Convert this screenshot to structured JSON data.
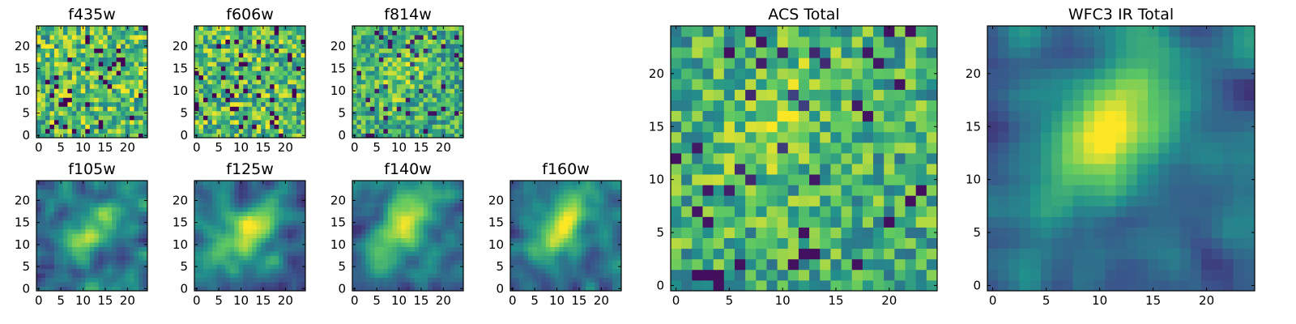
{
  "figure": {
    "description_colormap": "viridis",
    "colormap_stops": [
      "#440154",
      "#3b528b",
      "#21918c",
      "#5ec962",
      "#fde725"
    ]
  },
  "chart_data": [
    {
      "id": "f435w",
      "type": "heatmap",
      "title": "f435w",
      "grid_size": 25,
      "xticks": [
        0,
        5,
        10,
        15,
        20
      ],
      "yticks": [
        0,
        5,
        10,
        15,
        20
      ],
      "xlim": [
        0,
        24
      ],
      "ylim": [
        0,
        24
      ],
      "pattern": "noise",
      "seed": 11,
      "blob": null
    },
    {
      "id": "f606w",
      "type": "heatmap",
      "title": "f606w",
      "grid_size": 25,
      "xticks": [
        0,
        5,
        10,
        15,
        20
      ],
      "yticks": [
        0,
        5,
        10,
        15,
        20
      ],
      "xlim": [
        0,
        24
      ],
      "ylim": [
        0,
        24
      ],
      "pattern": "noise",
      "seed": 23,
      "blob": null
    },
    {
      "id": "f814w",
      "type": "heatmap",
      "title": "f814w",
      "grid_size": 25,
      "xticks": [
        0,
        5,
        10,
        15,
        20
      ],
      "yticks": [
        0,
        5,
        10,
        15,
        20
      ],
      "xlim": [
        0,
        24
      ],
      "ylim": [
        0,
        24
      ],
      "pattern": "noise",
      "seed": 37,
      "blob": {
        "cx": 11,
        "cy": 14,
        "strength": 0.15
      }
    },
    {
      "id": "f105w",
      "type": "heatmap",
      "title": "f105w",
      "grid_size": 25,
      "xticks": [
        0,
        5,
        10,
        15,
        20
      ],
      "yticks": [
        0,
        5,
        10,
        15,
        20
      ],
      "xlim": [
        0,
        24
      ],
      "ylim": [
        0,
        24
      ],
      "pattern": "smooth",
      "seed": 41,
      "blob": {
        "cx": 12,
        "cy": 13,
        "strength": 0.45
      }
    },
    {
      "id": "f125w",
      "type": "heatmap",
      "title": "f125w",
      "grid_size": 25,
      "xticks": [
        0,
        5,
        10,
        15,
        20
      ],
      "yticks": [
        0,
        5,
        10,
        15,
        20
      ],
      "xlim": [
        0,
        24
      ],
      "ylim": [
        0,
        24
      ],
      "pattern": "smooth",
      "seed": 53,
      "blob": {
        "cx": 12,
        "cy": 13,
        "strength": 0.5
      }
    },
    {
      "id": "f140w",
      "type": "heatmap",
      "title": "f140w",
      "grid_size": 25,
      "xticks": [
        0,
        5,
        10,
        15,
        20
      ],
      "yticks": [
        0,
        5,
        10,
        15,
        20
      ],
      "xlim": [
        0,
        24
      ],
      "ylim": [
        0,
        24
      ],
      "pattern": "smooth",
      "seed": 67,
      "blob": {
        "cx": 11,
        "cy": 15,
        "strength": 0.55
      }
    },
    {
      "id": "f160w",
      "type": "heatmap",
      "title": "f160w",
      "grid_size": 25,
      "xticks": [
        0,
        5,
        10,
        15,
        20
      ],
      "yticks": [
        0,
        5,
        10,
        15,
        20
      ],
      "xlim": [
        0,
        24
      ],
      "ylim": [
        0,
        24
      ],
      "pattern": "smooth",
      "seed": 79,
      "blob": {
        "cx": 11,
        "cy": 14,
        "strength": 0.6
      }
    },
    {
      "id": "acs_total",
      "type": "heatmap",
      "title": "ACS Total",
      "grid_size": 25,
      "xticks": [
        0,
        5,
        10,
        15,
        20
      ],
      "yticks": [
        0,
        5,
        10,
        15,
        20
      ],
      "xlim": [
        0,
        24
      ],
      "ylim": [
        0,
        24
      ],
      "pattern": "noise",
      "seed": 97,
      "blob": {
        "cx": 10,
        "cy": 16,
        "strength": 0.15
      }
    },
    {
      "id": "wfc3_ir_total",
      "type": "heatmap",
      "title": "WFC3 IR Total",
      "grid_size": 25,
      "xticks": [
        0,
        5,
        10,
        15,
        20
      ],
      "yticks": [
        0,
        5,
        10,
        15,
        20
      ],
      "xlim": [
        0,
        24
      ],
      "ylim": [
        0,
        24
      ],
      "pattern": "smooth",
      "seed": 113,
      "blob": {
        "cx": 11,
        "cy": 15,
        "strength": 0.6
      }
    }
  ]
}
